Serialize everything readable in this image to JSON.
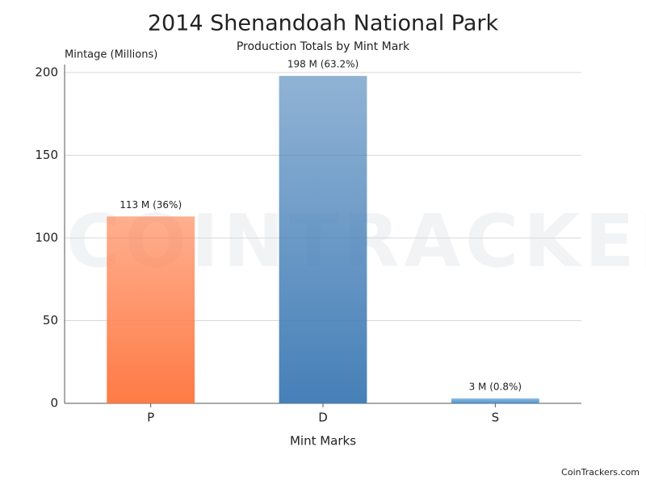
{
  "chart_data": {
    "type": "bar",
    "title": "2014 Shenandoah National Park",
    "subtitle": "Production Totals by Mint Mark",
    "y_label": "Mintage (Millions)",
    "x_label": "Mint Marks",
    "categories": [
      "P",
      "D",
      "S"
    ],
    "values": [
      113,
      198,
      3
    ],
    "value_labels": [
      "113 M (36%)",
      "198 M (63.2%)",
      "3 M (0.8%)"
    ],
    "colors": [
      "#ff7a45",
      "#4680b8",
      "#4a90cc"
    ],
    "ylim": [
      0,
      200
    ],
    "yticks": [
      0,
      50,
      100,
      150,
      200
    ],
    "grid": true,
    "watermark": "COINTRACKERS",
    "credit": "CoinTrackers.com"
  }
}
